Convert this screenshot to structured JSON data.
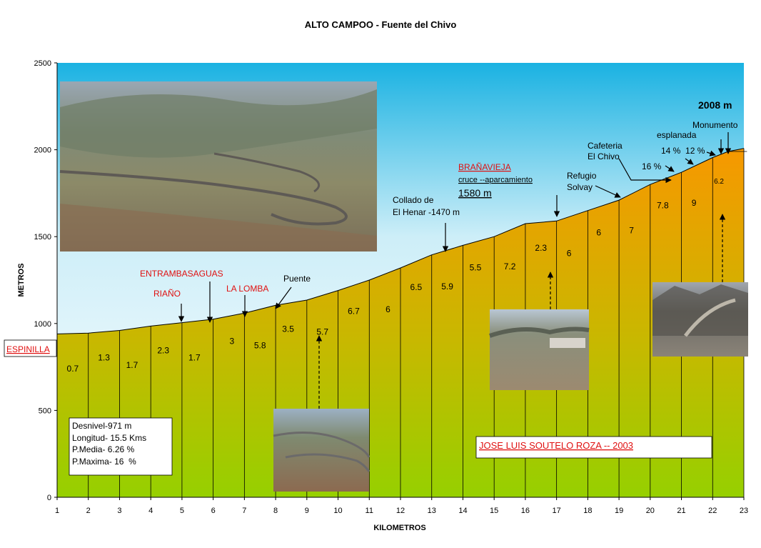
{
  "chart_data": {
    "type": "area",
    "title": "ALTO CAMPOO - Fuente del Chivo",
    "xlabel": "KILOMETROS",
    "ylabel": "METROS",
    "xlim": [
      1,
      23
    ],
    "ylim": [
      0,
      2500
    ],
    "x_ticks": [
      "1",
      "2",
      "3",
      "4",
      "5",
      "6",
      "7",
      "8",
      "9",
      "10",
      "11",
      "12",
      "13",
      "14",
      "15",
      "16",
      "17",
      "18",
      "19",
      "20",
      "21",
      "22",
      "23"
    ],
    "y_ticks": [
      "0",
      "500",
      "1000",
      "1500",
      "2000",
      "2500"
    ],
    "grid": false,
    "profile": {
      "x": [
        1,
        2,
        3,
        4,
        5,
        6,
        7,
        8,
        9,
        10,
        11,
        12,
        13,
        14,
        15,
        16,
        17,
        18,
        19,
        20,
        21,
        22,
        22.5,
        23
      ],
      "y": [
        940,
        945,
        960,
        985,
        1005,
        1025,
        1060,
        1105,
        1135,
        1190,
        1250,
        1320,
        1395,
        1450,
        1500,
        1575,
        1590,
        1650,
        1710,
        1800,
        1870,
        1955,
        1990,
        2008
      ]
    },
    "segment_slopes": [
      {
        "km": 1.5,
        "label": "0.7"
      },
      {
        "km": 2.5,
        "label": "1.3"
      },
      {
        "km": 3.4,
        "label": "1.7"
      },
      {
        "km": 4.4,
        "label": "2.3"
      },
      {
        "km": 5.4,
        "label": "1.7"
      },
      {
        "km": 6.6,
        "label": "3"
      },
      {
        "km": 7.5,
        "label": "5.8"
      },
      {
        "km": 8.4,
        "label": "3.5"
      },
      {
        "km": 9.5,
        "label": "5.7"
      },
      {
        "km": 10.5,
        "label": "6.7"
      },
      {
        "km": 11.6,
        "label": "6"
      },
      {
        "km": 12.5,
        "label": "6.5"
      },
      {
        "km": 13.5,
        "label": "5.9"
      },
      {
        "km": 14.4,
        "label": "5.5"
      },
      {
        "km": 15.5,
        "label": "7.2"
      },
      {
        "km": 16.5,
        "label": "2.3"
      },
      {
        "km": 17.4,
        "label": "6"
      },
      {
        "km": 18.35,
        "label": "6"
      },
      {
        "km": 19.4,
        "label": "7"
      },
      {
        "km": 20.4,
        "label": "7.8"
      },
      {
        "km": 21.4,
        "label": "9"
      },
      {
        "km": 22.2,
        "label": "6.2"
      }
    ],
    "annotations": {
      "summit": "2008 m",
      "monumento": "Monumento",
      "esplanada": "esplanada",
      "slope_14_12": "14 %  12 %",
      "slope_16": "16 %",
      "cafeteria_1": "Cafeteria",
      "cafeteria_2": "El Chivo",
      "refugio_1": "Refugio",
      "refugio_2": "Solvay",
      "branavieja": "BRAÑAVIEJA",
      "cruce": "cruce --aparcamiento",
      "alt_1580": "1580 m",
      "collado_1": "Collado de",
      "collado_2": "El Henar -1470 m",
      "entrambasaguas": "ENTRAMBASAGUAS",
      "riano": "RIAÑO",
      "la_lomba": "LA LOMBA",
      "puente": "Puente",
      "espinilla": "ESPINILLA",
      "author": "JOSE LUIS SOUTELO ROZA -- 2003"
    },
    "stats": [
      "Desnivel-971 m",
      "Longitud- 15.5 Kms",
      "P.Media- 6.26 %",
      "P.Maxima- 16  %"
    ]
  },
  "colors": {
    "sky_top": "#18b0e0",
    "sky_bottom": "#ffffff",
    "fill_top": "#f79800",
    "fill_bottom": "#96d000",
    "red_text": "#e01010"
  }
}
